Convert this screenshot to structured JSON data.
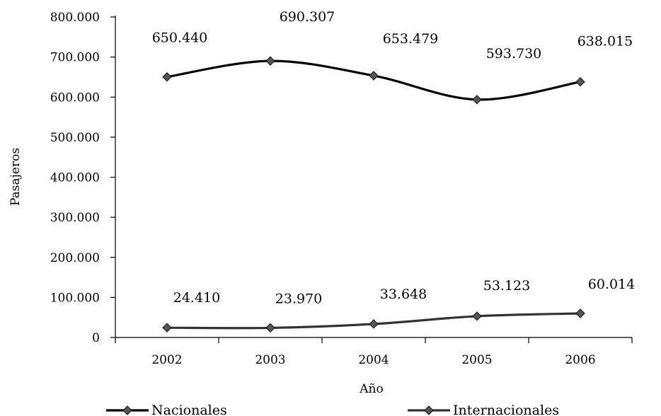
{
  "chart_data": {
    "type": "line",
    "title": "",
    "xlabel": "Año",
    "ylabel": "Pasajeros",
    "categories": [
      "2002",
      "2003",
      "2004",
      "2005",
      "2006"
    ],
    "ylim": [
      0,
      800000
    ],
    "yticks": [
      0,
      100000,
      200000,
      300000,
      400000,
      500000,
      600000,
      700000,
      800000
    ],
    "ytick_labels": [
      "0",
      "100.000",
      "200.000",
      "300.000",
      "400.000",
      "500.000",
      "600.000",
      "700.000",
      "800.000"
    ],
    "grid": false,
    "smooth": true,
    "marker": "diamond",
    "legend_position": "bottom",
    "series": [
      {
        "name": "Nacionales",
        "values": [
          650440,
          690307,
          653479,
          593730,
          638015
        ],
        "labels": [
          "650.440",
          "690.307",
          "653.479",
          "593.730",
          "638.015"
        ],
        "color": "#000000"
      },
      {
        "name": "Internacionales",
        "values": [
          24410,
          23970,
          33648,
          53123,
          60014
        ],
        "labels": [
          "24.410",
          "23.970",
          "33.648",
          "53.123",
          "60.014"
        ],
        "color": "#333333"
      }
    ]
  }
}
